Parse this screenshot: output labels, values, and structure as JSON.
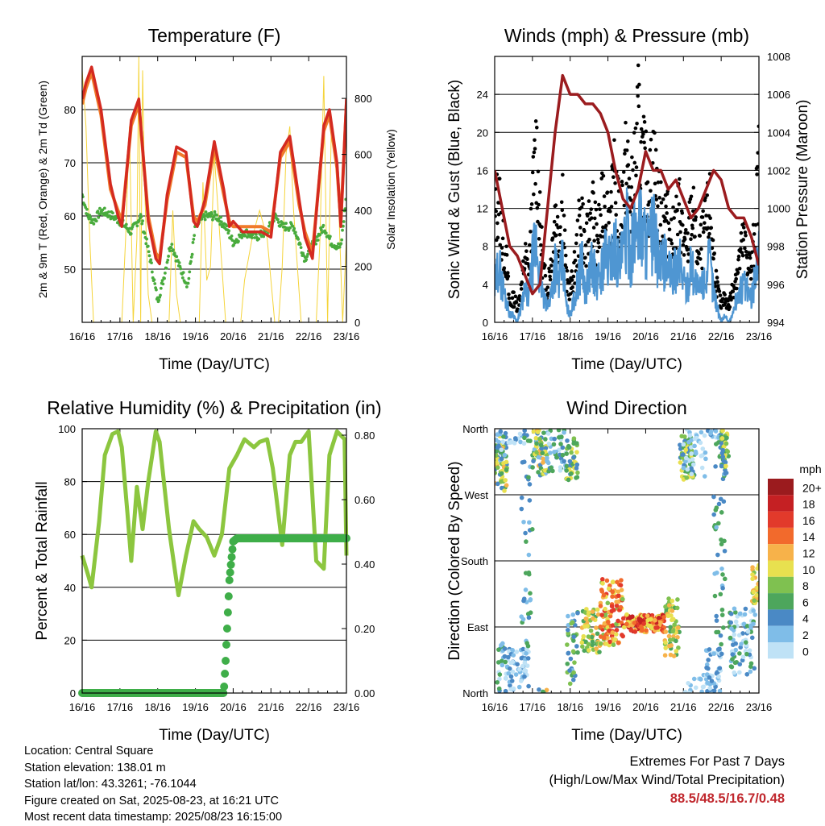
{
  "chart_data": [
    {
      "type": "line",
      "title": "Temperature (F)",
      "xlabel": "Time (Day/UTC)",
      "ylabel": "2m & 9m T (Red, Orange) & 2m Td (Green)",
      "y2label": "Solar Insolation (Yellow)",
      "x_ticks": [
        "16/16",
        "17/16",
        "18/16",
        "19/16",
        "20/16",
        "21/16",
        "22/16",
        "23/16"
      ],
      "xlim": [
        0,
        7
      ],
      "ylim": [
        40,
        90
      ],
      "y_ticks": [
        50,
        60,
        70,
        80
      ],
      "y2lim": [
        0,
        950
      ],
      "y2_ticks": [
        0,
        200,
        400,
        600,
        800
      ],
      "grid": true,
      "series": [
        {
          "name": "2m T",
          "color": "#d42a20",
          "x": [
            0,
            0.1,
            0.25,
            0.5,
            0.75,
            0.95,
            1.05,
            1.3,
            1.5,
            1.75,
            1.95,
            2.05,
            2.25,
            2.5,
            2.75,
            2.95,
            3.05,
            3.25,
            3.5,
            3.75,
            3.9,
            4.0,
            4.25,
            4.5,
            4.75,
            5.0,
            5.25,
            5.5,
            5.75,
            5.9,
            6.1,
            6.4,
            6.55,
            6.75,
            6.85,
            7.0
          ],
          "y": [
            82,
            85,
            88,
            80,
            66,
            60,
            58,
            78,
            82,
            59,
            52,
            51,
            64,
            73,
            72,
            59,
            58,
            63,
            74,
            65,
            58,
            59,
            57,
            57,
            57,
            56,
            72,
            75,
            63,
            56,
            52,
            77,
            80,
            70,
            58,
            82
          ]
        },
        {
          "name": "9m T",
          "color": "#f07a2a",
          "x": [
            0,
            0.1,
            0.25,
            0.5,
            0.75,
            0.95,
            1.05,
            1.3,
            1.5,
            1.75,
            1.95,
            2.05,
            2.25,
            2.5,
            2.75,
            2.95,
            3.05,
            3.25,
            3.5,
            3.75,
            3.9,
            4.0,
            4.25,
            4.5,
            4.75,
            5.0,
            5.25,
            5.5,
            5.75,
            5.9,
            6.1,
            6.4,
            6.55,
            6.75,
            6.85,
            7.0
          ],
          "y": [
            81,
            84,
            87,
            79,
            65,
            61,
            59,
            77,
            81,
            60,
            53,
            52,
            63,
            72,
            71,
            60,
            59,
            62,
            73,
            64,
            59,
            58,
            58,
            58,
            58,
            57,
            71,
            74,
            62,
            57,
            53,
            76,
            79,
            69,
            59,
            81
          ]
        },
        {
          "name": "2m Td",
          "color": "#49ab3d",
          "x": [
            0,
            0.15,
            0.3,
            0.5,
            0.8,
            1.0,
            1.3,
            1.55,
            1.8,
            2.0,
            2.15,
            2.35,
            2.6,
            2.8,
            3.0,
            3.25,
            3.55,
            3.8,
            4.0,
            4.3,
            4.6,
            4.9,
            5.1,
            5.3,
            5.6,
            5.9,
            6.15,
            6.4,
            6.6,
            6.85,
            7.0
          ],
          "y": [
            64,
            60,
            59,
            61,
            60,
            59,
            57,
            60,
            52,
            44,
            48,
            55,
            50,
            47,
            58,
            60,
            60,
            58,
            55,
            57,
            56,
            57,
            60,
            58,
            58,
            52,
            55,
            58,
            55,
            54,
            64
          ]
        },
        {
          "name": "Solar Insolation",
          "color": "#f5d43b",
          "axis": "y2",
          "x": [
            0,
            0.1,
            0.2,
            0.3,
            0.35,
            0.5,
            0.7,
            0.8,
            0.9,
            0.95,
            1.05,
            1.15,
            1.25,
            1.35,
            1.45,
            1.5,
            1.55,
            1.6,
            1.65,
            1.75,
            1.85,
            2.0,
            2.15,
            2.3,
            2.4,
            2.5,
            2.6,
            2.75,
            2.85,
            3.0,
            3.1,
            3.2,
            3.3,
            3.4,
            3.5,
            3.6,
            3.8,
            4.0,
            4.2,
            4.3,
            4.5,
            4.7,
            4.9,
            5.1,
            5.2,
            5.3,
            5.4,
            5.5,
            5.6,
            5.8,
            6.0,
            6.1,
            6.2,
            6.3,
            6.4,
            6.5,
            6.6,
            6.7,
            6.8,
            6.9,
            7.0
          ],
          "y": [
            900,
            700,
            300,
            0,
            0,
            0,
            0,
            0,
            0,
            0,
            0,
            300,
            700,
            0,
            300,
            950,
            0,
            900,
            500,
            100,
            0,
            0,
            0,
            0,
            400,
            100,
            0,
            0,
            0,
            0,
            0,
            500,
            150,
            200,
            600,
            400,
            0,
            0,
            0,
            150,
            300,
            400,
            300,
            0,
            0,
            200,
            600,
            700,
            400,
            0,
            0,
            0,
            0,
            300,
            880,
            0,
            700,
            600,
            400,
            0,
            300
          ]
        }
      ]
    },
    {
      "type": "scatter",
      "title": "Winds (mph) & Pressure (mb)",
      "xlabel": "Time (Day/UTC)",
      "ylabel": "Sonic Wind & Gust (Blue, Black)",
      "y2label": "Station Pressure (Maroon)",
      "x_ticks": [
        "16/16",
        "17/16",
        "18/16",
        "19/16",
        "20/16",
        "21/16",
        "22/16",
        "23/16"
      ],
      "xlim": [
        0,
        7
      ],
      "ylim": [
        0,
        28
      ],
      "y_ticks": [
        0,
        4,
        8,
        12,
        16,
        20,
        24
      ],
      "y2lim": [
        994,
        1008
      ],
      "y2_ticks": [
        994,
        996,
        998,
        1000,
        1002,
        1004,
        1006,
        1008
      ],
      "grid": true,
      "series": [
        {
          "name": "Gust",
          "color": "#000000",
          "type": "scatter",
          "x": [
            0,
            0.1,
            0.2,
            0.3,
            0.4,
            0.5,
            0.6,
            0.7,
            0.8,
            0.9,
            1.0,
            1.1,
            1.2,
            1.3,
            1.4,
            1.5,
            1.6,
            1.7,
            1.8,
            1.9,
            2.0,
            2.1,
            2.2,
            2.3,
            2.4,
            2.5,
            2.6,
            2.7,
            2.8,
            2.9,
            3.0,
            3.1,
            3.2,
            3.3,
            3.4,
            3.5,
            3.6,
            3.7,
            3.8,
            3.9,
            4.0,
            4.1,
            4.2,
            4.3,
            4.4,
            4.5,
            4.6,
            4.7,
            4.8,
            4.9,
            5.0,
            5.1,
            5.2,
            5.3,
            5.4,
            5.5,
            5.6,
            5.7,
            5.8,
            5.9,
            6.0,
            6.1,
            6.2,
            6.3,
            6.4,
            6.5,
            6.6,
            6.7,
            6.8,
            6.9,
            7.0
          ],
          "y": [
            12,
            16,
            10,
            8,
            2,
            3,
            2,
            4,
            8,
            6,
            14,
            22,
            12,
            6,
            4,
            8,
            14,
            10,
            16,
            5,
            4,
            6,
            10,
            14,
            8,
            12,
            14,
            10,
            12,
            16,
            13,
            14,
            18,
            12,
            16,
            20,
            14,
            18,
            24,
            20,
            18,
            16,
            20,
            16,
            13,
            14,
            12,
            10,
            12,
            14,
            10,
            8,
            14,
            12,
            8,
            10,
            12,
            14,
            8,
            4,
            2,
            3,
            2,
            4,
            6,
            8,
            10,
            8,
            6,
            12,
            19
          ]
        },
        {
          "name": "Sonic Wind",
          "color": "#4f96d2",
          "type": "line",
          "x": [
            0,
            0.1,
            0.2,
            0.3,
            0.4,
            0.5,
            0.6,
            0.7,
            0.8,
            0.9,
            1.0,
            1.1,
            1.2,
            1.3,
            1.4,
            1.5,
            1.6,
            1.7,
            1.8,
            1.9,
            2.0,
            2.1,
            2.2,
            2.3,
            2.4,
            2.5,
            2.6,
            2.7,
            2.8,
            2.9,
            3.0,
            3.1,
            3.2,
            3.3,
            3.4,
            3.5,
            3.6,
            3.7,
            3.8,
            3.9,
            4.0,
            4.1,
            4.2,
            4.3,
            4.4,
            4.5,
            4.6,
            4.7,
            4.8,
            4.9,
            5.0,
            5.1,
            5.2,
            5.3,
            5.4,
            5.5,
            5.6,
            5.7,
            5.8,
            5.9,
            6.0,
            6.1,
            6.2,
            6.3,
            6.4,
            6.5,
            6.6,
            6.7,
            6.8,
            6.9,
            7.0
          ],
          "y": [
            4,
            8,
            5,
            3,
            1,
            1,
            0,
            2,
            4,
            3,
            8,
            10,
            6,
            3,
            2,
            4,
            8,
            5,
            8,
            2,
            1,
            3,
            5,
            8,
            4,
            6,
            8,
            5,
            6,
            9,
            8,
            9,
            10,
            7,
            9,
            12,
            9,
            11,
            14,
            12,
            11,
            10,
            12,
            9,
            7,
            8,
            7,
            6,
            7,
            8,
            6,
            4,
            8,
            6,
            4,
            5,
            6,
            8,
            4,
            2,
            0,
            1,
            0,
            1,
            3,
            4,
            5,
            4,
            3,
            6,
            10
          ]
        },
        {
          "name": "Station Pressure",
          "color": "#9b1c1f",
          "type": "line",
          "axis": "y2",
          "x": [
            0,
            0.2,
            0.4,
            0.6,
            0.8,
            1.0,
            1.2,
            1.4,
            1.6,
            1.8,
            2.0,
            2.2,
            2.4,
            2.6,
            2.8,
            3.0,
            3.2,
            3.4,
            3.6,
            3.8,
            4.0,
            4.2,
            4.4,
            4.6,
            4.8,
            5.0,
            5.2,
            5.4,
            5.6,
            5.8,
            6.0,
            6.2,
            6.4,
            6.6,
            6.8,
            7.0
          ],
          "y": [
            1002,
            1000,
            998,
            997.5,
            996.5,
            995.5,
            996,
            1000,
            1004,
            1007,
            1006,
            1006,
            1005.5,
            1005.5,
            1005,
            1004,
            1002,
            1000.5,
            1000,
            1001,
            1003,
            1002,
            1002,
            1001,
            1001.5,
            1000.5,
            999.5,
            1000,
            1001,
            1002,
            1001.5,
            1000,
            999.5,
            999.5,
            998.5,
            997
          ]
        }
      ]
    },
    {
      "type": "line",
      "title": "Relative Humidity (%) & Precipitation (in)",
      "xlabel": "Time (Day/UTC)",
      "ylabel": "Percent & Total Rainfall",
      "x_ticks": [
        "16/16",
        "17/16",
        "18/16",
        "19/16",
        "20/16",
        "21/16",
        "22/16",
        "23/16"
      ],
      "xlim": [
        0,
        7
      ],
      "ylim": [
        0,
        100
      ],
      "y_ticks": [
        0,
        20,
        40,
        60,
        80,
        100
      ],
      "y2lim": [
        0,
        0.82
      ],
      "y2_ticks": [
        "0.00",
        "0.20",
        "0.40",
        "0.60",
        "0.80"
      ],
      "grid": true,
      "series": [
        {
          "name": "Relative Humidity",
          "color": "#8cc63f",
          "x": [
            0,
            0.15,
            0.25,
            0.45,
            0.6,
            0.8,
            0.95,
            1.05,
            1.2,
            1.3,
            1.45,
            1.6,
            1.75,
            1.95,
            2.05,
            2.3,
            2.55,
            2.75,
            2.95,
            3.1,
            3.3,
            3.5,
            3.7,
            3.9,
            4.1,
            4.3,
            4.55,
            4.7,
            4.9,
            5.05,
            5.3,
            5.5,
            5.65,
            5.8,
            6.0,
            6.2,
            6.4,
            6.55,
            6.75,
            6.95,
            7.0
          ],
          "y": [
            52,
            45,
            40,
            65,
            90,
            98,
            99,
            93,
            68,
            50,
            78,
            62,
            80,
            99,
            95,
            62,
            37,
            52,
            65,
            62,
            59,
            52,
            60,
            85,
            90,
            96,
            93,
            95,
            96,
            85,
            56,
            90,
            95,
            95,
            99,
            50,
            47,
            90,
            99,
            96,
            52
          ]
        },
        {
          "name": "Total Precipitation",
          "color": "#3fae49",
          "x": [
            0,
            1,
            2,
            3,
            3.75,
            3.8,
            3.9,
            4.0,
            4.1,
            4.2,
            5,
            6,
            7
          ],
          "y": [
            0,
            0,
            0,
            0,
            0,
            0.1,
            0.35,
            0.47,
            0.48,
            0.48,
            0.48,
            0.48,
            0.48
          ]
        }
      ]
    },
    {
      "type": "scatter",
      "title": "Wind Direction",
      "xlabel": "Time (Day/UTC)",
      "ylabel": "Direction (Colored By Speed)",
      "x_ticks": [
        "16/16",
        "17/16",
        "18/16",
        "19/16",
        "20/16",
        "21/16",
        "22/16",
        "23/16"
      ],
      "xlim": [
        0,
        7
      ],
      "y_ticks": [
        "North",
        "East",
        "South",
        "West",
        "North"
      ],
      "ylim": [
        0,
        360
      ],
      "legend_title": "mph",
      "legend": [
        "0",
        "2",
        "4",
        "6",
        "8",
        "10",
        "12",
        "14",
        "16",
        "18",
        "20+"
      ],
      "legend_colors": [
        "#bfe2f6",
        "#7fbde8",
        "#4a89c5",
        "#4da65c",
        "#7fc150",
        "#e8e04f",
        "#f7b24a",
        "#f26a2c",
        "#e23a2b",
        "#c52023",
        "#9b1b1e"
      ],
      "legend_placement": "right"
    }
  ],
  "info": {
    "location": "Location: Central Square",
    "elevation": "Station elevation: 138.01 m",
    "latlon": "Station lat/lon: 43.3261; -76.1044",
    "created": "Figure created on Sat, 2025-08-23, at 16:21 UTC",
    "recent": "Most recent data timestamp: 2025/08/23 16:15:00"
  },
  "extremes": {
    "line1": "Extremes For Past 7 Days",
    "line2": "(High/Low/Max Wind/Total Precipitation)",
    "values": "88.5/48.5/16.7/0.48"
  }
}
